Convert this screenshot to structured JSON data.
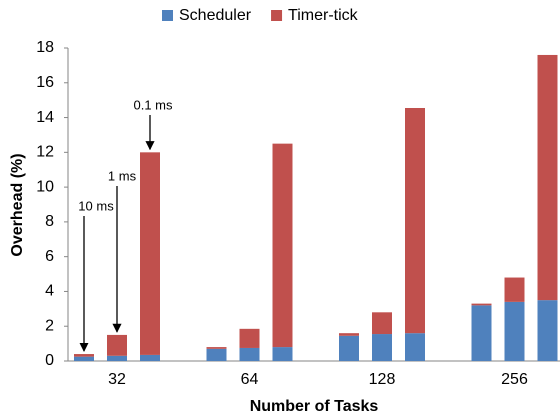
{
  "chart_data": {
    "type": "stacked-bar",
    "x_label": "Number of Tasks",
    "y_label": "Overhead (%)",
    "categories": [
      null,
      "32",
      null,
      null,
      "64",
      null,
      null,
      "128",
      null,
      null,
      "256",
      null
    ],
    "annotations": [
      "10 ms",
      "1 ms",
      "0.1 ms"
    ],
    "series": [
      {
        "name": "Scheduler",
        "color": "#4f81bd",
        "values": [
          0.25,
          0.3,
          0.35,
          0.7,
          0.75,
          0.8,
          1.45,
          1.55,
          1.6,
          3.2,
          3.4,
          3.5
        ]
      },
      {
        "name": "Timer-tick",
        "color": "#c0504d",
        "values": [
          0.15,
          1.2,
          11.65,
          0.1,
          1.1,
          11.7,
          0.15,
          1.25,
          12.95,
          0.1,
          1.4,
          14.1
        ]
      }
    ],
    "ylim": [
      0,
      18
    ],
    "yticks": [
      0,
      2,
      4,
      6,
      8,
      10,
      12,
      14,
      16,
      18
    ],
    "legend": "top"
  }
}
